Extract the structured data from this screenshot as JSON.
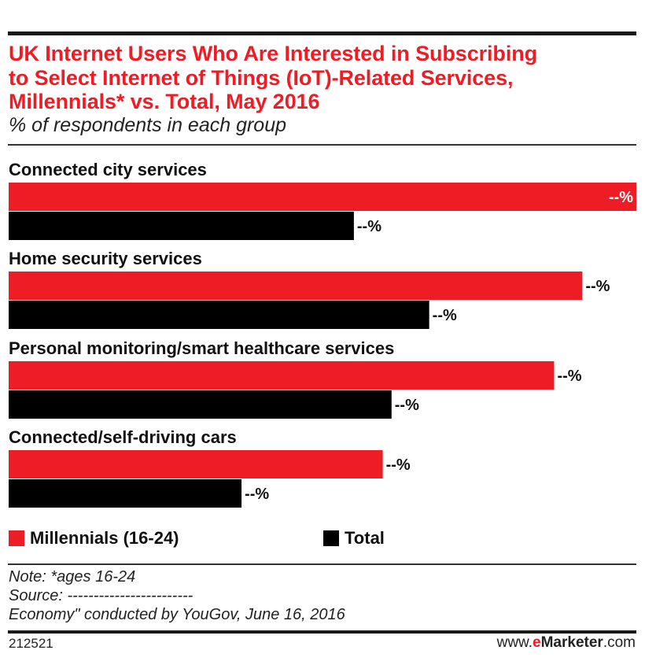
{
  "header": {
    "title_lines": [
      "UK Internet Users Who Are Interested in Subscribing",
      "to Select Internet of Things (IoT)-Related Services,",
      "Millennials* vs. Total, May 2016"
    ],
    "subtitle": "% of respondents in each group"
  },
  "colors": {
    "millennials": "#ee1c24",
    "total": "#000000",
    "title": "#ee1c24"
  },
  "chart_data": {
    "type": "bar",
    "orientation": "horizontal",
    "categories": [
      "Connected city services",
      "Home security services",
      "Personal monitoring/smart healthcare services",
      "Connected/self-driving cars"
    ],
    "series": [
      {
        "name": "Millennials (16-24)",
        "values": [
          100,
          91.4,
          86.9,
          59.6
        ],
        "labels": [
          "--%",
          "--%",
          "--%",
          "--%"
        ]
      },
      {
        "name": "Total",
        "values": [
          55.0,
          67.0,
          61.0,
          37.1
        ],
        "labels": [
          "--%",
          "--%",
          "--%",
          "--%"
        ]
      }
    ],
    "value_scale": "relative (values hidden as --%)",
    "xlim": [
      0,
      100
    ],
    "grid": false,
    "legend": "bottom"
  },
  "legend": {
    "items": [
      {
        "label": "Millennials (16-24)"
      },
      {
        "label": "Total"
      }
    ]
  },
  "footer": {
    "note": "Note: *ages 16-24",
    "source": "Source: ------------------------",
    "source_cont": "Economy\" conducted by YouGov, June 16, 2016",
    "chart_id": "212521",
    "brand_prefix": "www.",
    "brand_e": "e",
    "brand_name": "Marketer",
    "brand_suffix": ".com"
  }
}
